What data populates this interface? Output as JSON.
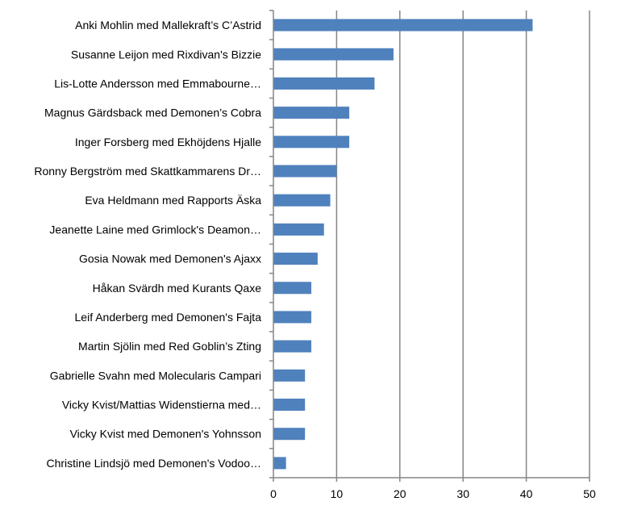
{
  "chart_data": {
    "type": "bar",
    "orientation": "horizontal",
    "categories": [
      "Anki Mohlin med Mallekraft’s C’Astrid",
      "Susanne Leijon med Rixdivan's Bizzie",
      "Lis-Lotte Andersson med Emmabourne…",
      "Magnus Gärdsback med Demonen’s Cobra",
      "Inger Forsberg med Ekhöjdens Hjalle",
      "Ronny Bergström med Skattkammarens Dr…",
      "Eva Heldmann med Rapports Äska",
      "Jeanette Laine med Grimlock's Deamon…",
      "Gosia Nowak med Demonen's Ajaxx",
      "Håkan Svärdh med Kurants Qaxe",
      "Leif Anderberg med Demonen's Fajta",
      "Martin Sjölin med Red Goblin’s Zting",
      "Gabrielle Svahn med Molecularis Campari",
      "Vicky Kvist/Mattias Widenstierna med…",
      "Vicky Kvist med Demonen's Yohnsson",
      "Christine Lindsjö med Demonen's Vodoo…"
    ],
    "values": [
      41,
      19,
      16,
      12,
      12,
      10,
      9,
      8,
      7,
      6,
      6,
      6,
      5,
      5,
      5,
      2
    ],
    "xlim": [
      0,
      50
    ],
    "xticks": [
      0,
      10,
      20,
      30,
      40,
      50
    ],
    "grid": "vertical",
    "legend": "none",
    "bar_color": "#4F81BD",
    "title": "",
    "xlabel": "",
    "ylabel": ""
  }
}
